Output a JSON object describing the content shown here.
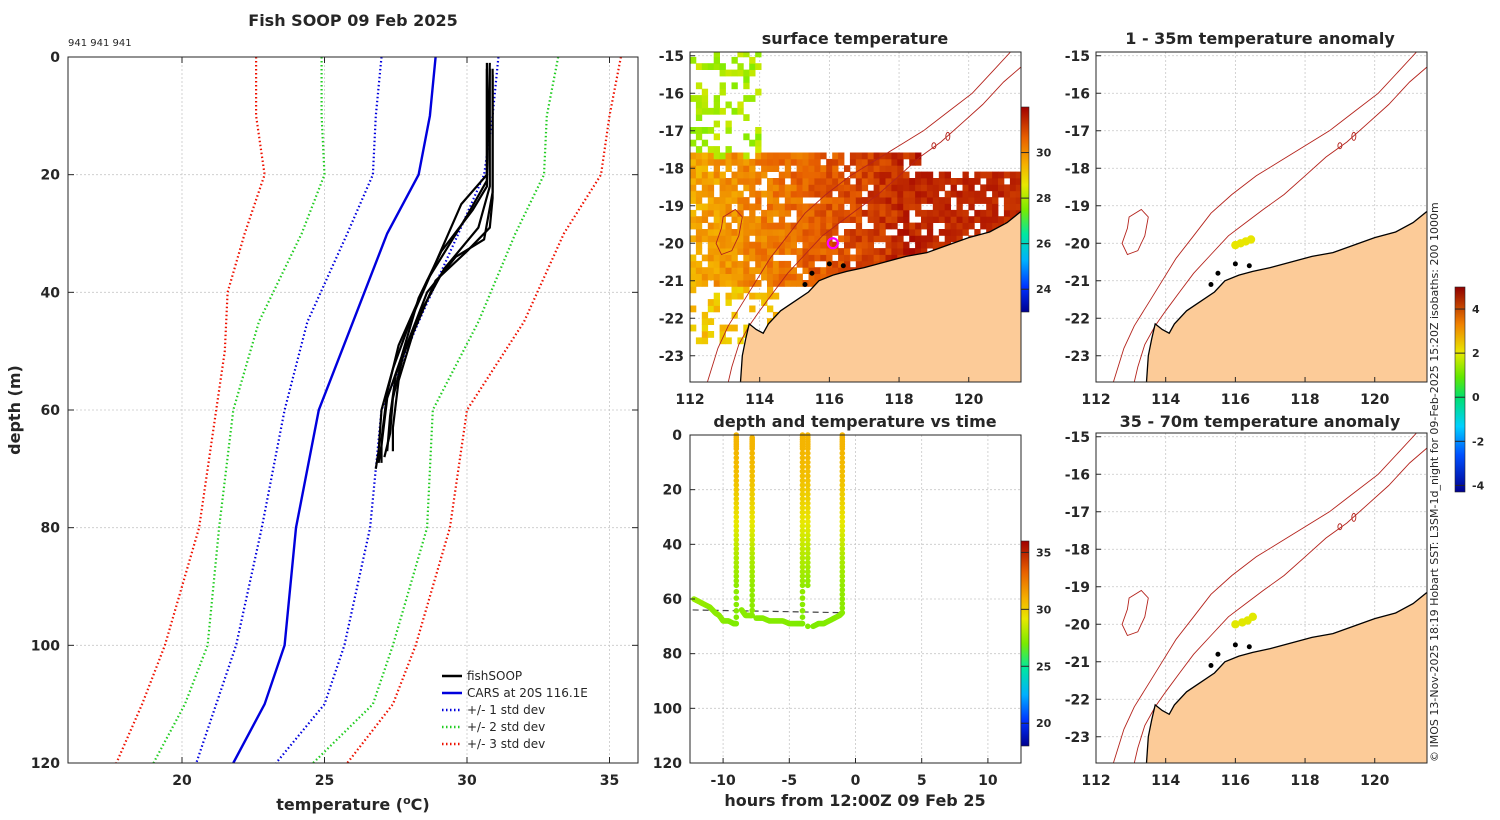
{
  "main_title": "Fish SOOP 09 Feb 2025",
  "ids_label": "941 941 941",
  "footer": "© IMOS 13-Nov-2025 18:19 Hobart SST: L3SM-1d_night for 09-Feb-2025 15:20Z isobaths: 200  1000m",
  "colors": {
    "fish": "#000000",
    "cars": "#0000dd",
    "std1": "#0000dd",
    "std2": "#22cc22",
    "std3": "#ee1100",
    "land": "#fccb98",
    "isobath": "#b4231c",
    "marker": "#ff00ff"
  },
  "chart_data": [
    {
      "id": "profile",
      "type": "line",
      "title": "Fish SOOP 09 Feb 2025",
      "xlabel": "temperature (°C)",
      "ylabel": "depth (m)",
      "xlim": [
        16,
        36
      ],
      "ylim": [
        120,
        0
      ],
      "xticks": [
        "20",
        "25",
        "30",
        "35"
      ],
      "yticks": [
        "0",
        "20",
        "40",
        "60",
        "80",
        "100",
        "120"
      ],
      "legend": [
        "fishSOOP",
        "CARS at 20S 116.1E",
        "+/- 1 std dev",
        "+/- 2 std dev",
        "+/- 3 std dev"
      ],
      "legend_position": "bottom-right",
      "series": [
        {
          "name": "CARS at 20S 116.1E",
          "style": "solid",
          "color": "cars",
          "points": [
            [
              28.9,
              0
            ],
            [
              28.7,
              10
            ],
            [
              28.3,
              20
            ],
            [
              27.2,
              30
            ],
            [
              26.0,
              45
            ],
            [
              24.8,
              60
            ],
            [
              24.0,
              80
            ],
            [
              23.6,
              100
            ],
            [
              22.9,
              110
            ],
            [
              21.8,
              120
            ]
          ]
        },
        {
          "name": "+/- 1 std dev (low)",
          "style": "dotted",
          "color": "std1",
          "points": [
            [
              27.0,
              0
            ],
            [
              26.8,
              10
            ],
            [
              26.7,
              20
            ],
            [
              25.8,
              30
            ],
            [
              24.4,
              45
            ],
            [
              23.6,
              60
            ],
            [
              22.8,
              80
            ],
            [
              21.9,
              100
            ],
            [
              21.2,
              110
            ],
            [
              20.5,
              120
            ]
          ]
        },
        {
          "name": "+/- 1 std dev (high)",
          "style": "dotted",
          "color": "std1",
          "points": [
            [
              31.1,
              0
            ],
            [
              30.9,
              10
            ],
            [
              30.6,
              20
            ],
            [
              29.7,
              30
            ],
            [
              28.3,
              45
            ],
            [
              27.0,
              60
            ],
            [
              26.6,
              80
            ],
            [
              25.7,
              100
            ],
            [
              25.0,
              110
            ],
            [
              23.3,
              120
            ]
          ]
        },
        {
          "name": "+/- 2 std dev (low)",
          "style": "dotted",
          "color": "std2",
          "points": [
            [
              24.9,
              0
            ],
            [
              24.9,
              10
            ],
            [
              25.0,
              20
            ],
            [
              24.2,
              30
            ],
            [
              22.7,
              45
            ],
            [
              21.8,
              60
            ],
            [
              21.3,
              80
            ],
            [
              20.9,
              100
            ],
            [
              20.1,
              110
            ],
            [
              19.0,
              120
            ]
          ]
        },
        {
          "name": "+/- 2 std dev (high)",
          "style": "dotted",
          "color": "std2",
          "points": [
            [
              33.2,
              0
            ],
            [
              32.8,
              10
            ],
            [
              32.7,
              20
            ],
            [
              31.7,
              30
            ],
            [
              30.4,
              45
            ],
            [
              28.8,
              60
            ],
            [
              28.6,
              80
            ],
            [
              27.4,
              100
            ],
            [
              26.7,
              110
            ],
            [
              24.6,
              120
            ]
          ]
        },
        {
          "name": "+/- 3 std dev (low)",
          "style": "dotted",
          "color": "std3",
          "points": [
            [
              22.6,
              0
            ],
            [
              22.6,
              10
            ],
            [
              22.9,
              20
            ],
            [
              22.2,
              30
            ],
            [
              21.6,
              40
            ],
            [
              21.5,
              50
            ],
            [
              21.2,
              60
            ],
            [
              20.6,
              80
            ],
            [
              19.4,
              100
            ],
            [
              18.6,
              110
            ],
            [
              17.7,
              120
            ]
          ]
        },
        {
          "name": "+/- 3 std dev (high)",
          "style": "dotted",
          "color": "std3",
          "points": [
            [
              35.4,
              0
            ],
            [
              35.0,
              10
            ],
            [
              34.7,
              20
            ],
            [
              33.4,
              30
            ],
            [
              32.0,
              45
            ],
            [
              30.0,
              60
            ],
            [
              29.4,
              80
            ],
            [
              28.2,
              100
            ],
            [
              27.4,
              110
            ],
            [
              25.8,
              120
            ]
          ]
        },
        {
          "name": "fishSOOP",
          "style": "solid",
          "color": "fish",
          "casts": [
            [
              [
                30.7,
                1
              ],
              [
                30.7,
                20
              ],
              [
                29.8,
                25
              ],
              [
                28.9,
                35
              ],
              [
                28.0,
                45
              ],
              [
                27.4,
                53
              ],
              [
                27.0,
                60
              ],
              [
                26.9,
                67
              ],
              [
                26.8,
                70
              ]
            ],
            [
              [
                30.8,
                1
              ],
              [
                30.7,
                21
              ],
              [
                30.0,
                27
              ],
              [
                28.6,
                38
              ],
              [
                27.6,
                49
              ],
              [
                27.2,
                57
              ],
              [
                27.0,
                65
              ],
              [
                27.0,
                69
              ]
            ],
            [
              [
                30.8,
                2
              ],
              [
                30.8,
                22
              ],
              [
                30.4,
                29
              ],
              [
                29.2,
                36
              ],
              [
                28.3,
                44
              ],
              [
                27.5,
                54
              ],
              [
                27.3,
                61
              ],
              [
                27.2,
                67
              ]
            ],
            [
              [
                30.9,
                2
              ],
              [
                30.9,
                23
              ],
              [
                30.6,
                31
              ],
              [
                29.6,
                34
              ],
              [
                28.6,
                40
              ],
              [
                27.8,
                50
              ],
              [
                27.4,
                58
              ],
              [
                27.3,
                64
              ],
              [
                27.1,
                68
              ]
            ],
            [
              [
                30.9,
                3
              ],
              [
                30.9,
                24
              ],
              [
                30.8,
                29
              ],
              [
                30.0,
                33
              ],
              [
                28.9,
                38
              ],
              [
                28.1,
                47
              ],
              [
                27.6,
                55
              ],
              [
                27.4,
                63
              ],
              [
                27.4,
                67
              ]
            ],
            [
              [
                30.7,
                2
              ],
              [
                30.7,
                22
              ],
              [
                30.2,
                26
              ],
              [
                29.1,
                33
              ],
              [
                28.3,
                41
              ],
              [
                27.7,
                51
              ],
              [
                27.2,
                58
              ],
              [
                27.0,
                66
              ],
              [
                26.9,
                69
              ]
            ]
          ]
        }
      ]
    },
    {
      "id": "surface",
      "type": "heatmap",
      "title": "surface temperature",
      "xlim": [
        112,
        121.5
      ],
      "ylim": [
        -23.7,
        -14.9
      ],
      "xticks": [
        "112",
        "114",
        "116",
        "118",
        "120"
      ],
      "yticks": [
        "-15",
        "-16",
        "-17",
        "-18",
        "-19",
        "-20",
        "-21",
        "-22",
        "-23"
      ],
      "colorbar": {
        "range": [
          23,
          32
        ],
        "ticks": [
          "24",
          "26",
          "28",
          "30"
        ]
      },
      "position_marker": {
        "lon": 116.1,
        "lat": -20.0
      }
    },
    {
      "id": "depthtime",
      "type": "scatter",
      "title": "depth and temperature vs time",
      "xlabel": "hours from 12:00Z 09 Feb 25",
      "xlim": [
        -12.5,
        12.5
      ],
      "ylim": [
        120,
        0
      ],
      "xticks": [
        "-10",
        "-5",
        "0",
        "5",
        "10"
      ],
      "yticks": [
        "0",
        "20",
        "40",
        "60",
        "80",
        "100",
        "120"
      ],
      "colorbar": {
        "range": [
          18,
          36
        ],
        "ticks": [
          "20",
          "25",
          "30",
          "35"
        ]
      },
      "bottom_depth_line": [
        [
          -12.3,
          64
        ],
        [
          -1.0,
          65
        ]
      ],
      "track": [
        [
          -12.2,
          60,
          27.5
        ],
        [
          -11.8,
          61,
          27.6
        ],
        [
          -11.4,
          62,
          27.5
        ],
        [
          -11.0,
          63,
          27.4
        ],
        [
          -10.6,
          65,
          27.3
        ],
        [
          -10.3,
          66,
          27.4
        ],
        [
          -10.0,
          68,
          27.3
        ],
        [
          -9.6,
          68,
          27.2
        ],
        [
          -9.2,
          69,
          27.1
        ],
        [
          -9.0,
          69,
          27.1
        ],
        [
          -9.0,
          55,
          27.4
        ],
        [
          -9.0,
          45,
          28.0
        ],
        [
          -9.0,
          35,
          28.9
        ],
        [
          -9.0,
          25,
          29.8
        ],
        [
          -9.0,
          15,
          30.5
        ],
        [
          -9.0,
          5,
          30.8
        ],
        [
          -9.0,
          0,
          30.8
        ],
        [
          -8.6,
          64,
          27.3
        ],
        [
          -8.3,
          66,
          27.3
        ],
        [
          -8.0,
          66,
          27.3
        ],
        [
          -7.8,
          66,
          27.3
        ],
        [
          -7.8,
          55,
          27.5
        ],
        [
          -7.8,
          45,
          28.0
        ],
        [
          -7.8,
          35,
          28.9
        ],
        [
          -7.8,
          25,
          29.8
        ],
        [
          -7.8,
          15,
          30.5
        ],
        [
          -7.8,
          5,
          30.8
        ],
        [
          -7.8,
          1,
          30.8
        ],
        [
          -7.5,
          67,
          27.2
        ],
        [
          -7.0,
          67,
          27.2
        ],
        [
          -6.5,
          68,
          27.2
        ],
        [
          -6.0,
          68,
          27.2
        ],
        [
          -5.5,
          68,
          27.2
        ],
        [
          -5.0,
          69,
          27.2
        ],
        [
          -4.5,
          69,
          27.1
        ],
        [
          -4.1,
          69,
          27.1
        ],
        [
          -4.0,
          69,
          27.1
        ],
        [
          -4.0,
          55,
          27.5
        ],
        [
          -4.0,
          45,
          28.1
        ],
        [
          -4.0,
          35,
          28.9
        ],
        [
          -4.0,
          25,
          29.8
        ],
        [
          -4.0,
          15,
          30.5
        ],
        [
          -4.0,
          5,
          30.8
        ],
        [
          -4.0,
          0,
          30.8
        ],
        [
          -3.6,
          70,
          27.1
        ],
        [
          -3.6,
          55,
          27.4
        ],
        [
          -3.6,
          45,
          28.0
        ],
        [
          -3.6,
          35,
          28.9
        ],
        [
          -3.6,
          25,
          29.8
        ],
        [
          -3.6,
          15,
          30.5
        ],
        [
          -3.6,
          5,
          30.8
        ],
        [
          -3.6,
          0,
          30.8
        ],
        [
          -3.2,
          70,
          27.1
        ],
        [
          -2.8,
          69,
          27.1
        ],
        [
          -2.4,
          69,
          27.1
        ],
        [
          -2.0,
          68,
          27.2
        ],
        [
          -1.6,
          67,
          27.2
        ],
        [
          -1.2,
          66,
          27.3
        ],
        [
          -1.0,
          65,
          27.3
        ],
        [
          -1.0,
          55,
          27.5
        ],
        [
          -1.0,
          45,
          28.0
        ],
        [
          -1.0,
          35,
          28.9
        ],
        [
          -1.0,
          25,
          29.8
        ],
        [
          -1.0,
          15,
          30.5
        ],
        [
          -1.0,
          5,
          30.8
        ],
        [
          -1.0,
          0,
          30.8
        ]
      ]
    },
    {
      "id": "anom1",
      "type": "scatter",
      "title": "1 - 35m temperature anomaly",
      "xlim": [
        112,
        121.5
      ],
      "ylim": [
        -23.7,
        -14.9
      ],
      "xticks": [
        "112",
        "114",
        "116",
        "118",
        "120"
      ],
      "yticks": [
        "-15",
        "-16",
        "-17",
        "-18",
        "-19",
        "-20",
        "-21",
        "-22",
        "-23"
      ],
      "points": [
        [
          116.0,
          -20.05,
          1.5
        ],
        [
          116.15,
          -20.0,
          1.5
        ],
        [
          116.3,
          -19.95,
          1.5
        ],
        [
          116.45,
          -19.9,
          1.5
        ]
      ]
    },
    {
      "id": "anom2",
      "type": "scatter",
      "title": "35 - 70m temperature anomaly",
      "xlim": [
        112,
        121.5
      ],
      "ylim": [
        -23.7,
        -14.9
      ],
      "xticks": [
        "112",
        "114",
        "116",
        "118",
        "120"
      ],
      "yticks": [
        "-15",
        "-16",
        "-17",
        "-18",
        "-19",
        "-20",
        "-21",
        "-22",
        "-23"
      ],
      "points": [
        [
          116.0,
          -20.0,
          1.4
        ],
        [
          116.2,
          -19.95,
          1.4
        ],
        [
          116.35,
          -19.9,
          1.4
        ],
        [
          116.5,
          -19.8,
          1.4
        ]
      ],
      "colorbar": {
        "range": [
          -4.3,
          5
        ],
        "ticks": [
          "-4",
          "-2",
          "0",
          "2",
          "4"
        ]
      }
    }
  ]
}
